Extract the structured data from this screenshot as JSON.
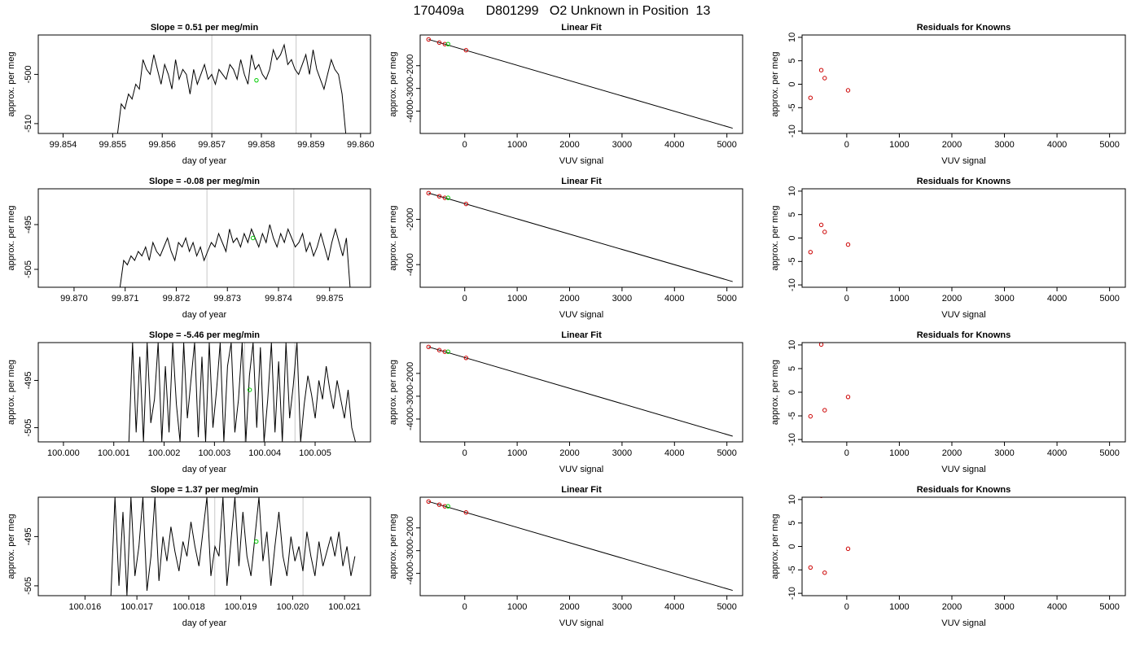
{
  "figure": {
    "title": "170409a      D801299   O2 Unknown in Position  13"
  },
  "rows": [
    {
      "trace": {
        "title": "Slope =  0.51  per meg/min",
        "xlabel": "day of year",
        "ylabel": "approx. per meg",
        "xticks": [
          "99.854",
          "99.855",
          "99.856",
          "99.857",
          "99.858",
          "99.859",
          "99.860"
        ],
        "xtick_values": [
          99.854,
          99.855,
          99.856,
          99.857,
          99.858,
          99.859,
          99.86
        ],
        "xlim": [
          99.8535,
          99.8602
        ],
        "yticks": [
          "-510",
          "-500"
        ],
        "ytick_values": [
          -510,
          -500
        ],
        "ylim": [
          -512,
          -492
        ],
        "vlines": [
          99.857,
          99.8587
        ],
        "green_point": [
          99.8579,
          -501.2
        ],
        "x_start": 99.8551,
        "x_end": 99.8597,
        "series": [
          -512,
          -506,
          -507,
          -504,
          -505,
          -502,
          -503,
          -497,
          -499,
          -500,
          -496,
          -499,
          -502,
          -498,
          -500,
          -503,
          -497,
          -501,
          -499,
          -500,
          -504,
          -499,
          -502,
          -500,
          -498,
          -501,
          -500,
          -502,
          -499,
          -500,
          -501,
          -498,
          -499,
          -501,
          -497,
          -500,
          -502,
          -496,
          -499,
          -498,
          -500,
          -501,
          -499,
          -495,
          -497,
          -496,
          -494,
          -498,
          -497,
          -499,
          -500,
          -498,
          -496,
          -500,
          -495,
          -499,
          -501,
          -503,
          -500,
          -497,
          -499,
          -500,
          -504,
          -512
        ]
      },
      "fit": {
        "title": "Linear Fit",
        "xlabel": "VUV signal",
        "ylabel": "approx. per meg",
        "xticks": [
          "0",
          "1000",
          "2000",
          "3000",
          "4000",
          "5000"
        ],
        "xtick_values": [
          0,
          1000,
          2000,
          3000,
          4000,
          5000
        ],
        "xlim": [
          -850,
          5300
        ],
        "yticks": [
          "-4000",
          "-3000",
          "-2000"
        ],
        "ytick_values": [
          -4000,
          -3000,
          -2000
        ],
        "ylim": [
          -4980,
          -650
        ],
        "line": [
          [
            -690,
            -845
          ],
          [
            5110,
            -4750
          ]
        ],
        "red_points": [
          [
            -690,
            -845
          ],
          [
            -485,
            -985
          ],
          [
            -380,
            -1050
          ],
          [
            25,
            -1320
          ]
        ],
        "green_points": [
          [
            -380,
            -1050
          ]
        ]
      },
      "resid": {
        "title": "Residuals for Knowns",
        "xlabel": "VUV signal",
        "ylabel": "approx. per meg",
        "xticks": [
          "0",
          "1000",
          "2000",
          "3000",
          "4000",
          "5000"
        ],
        "xtick_values": [
          0,
          1000,
          2000,
          3000,
          4000,
          5000
        ],
        "xlim": [
          -850,
          5300
        ],
        "yticks": [
          "-10",
          "-5",
          "0",
          "5",
          "10"
        ],
        "ytick_values": [
          -10,
          -5,
          0,
          5,
          10
        ],
        "ylim": [
          -10.5,
          10.5
        ],
        "red_points": [
          [
            -690,
            -2.9
          ],
          [
            -485,
            3.0
          ],
          [
            -420,
            1.3
          ],
          [
            25,
            -1.3
          ]
        ]
      }
    },
    {
      "trace": {
        "title": "Slope =  -0.08  per meg/min",
        "xlabel": "day of year",
        "ylabel": "approx. per meg",
        "xticks": [
          "99.870",
          "99.871",
          "99.872",
          "99.873",
          "99.874",
          "99.875"
        ],
        "xtick_values": [
          99.87,
          99.871,
          99.872,
          99.873,
          99.874,
          99.875
        ],
        "xlim": [
          99.8693,
          99.8758
        ],
        "yticks": [
          "-505",
          "-495"
        ],
        "ytick_values": [
          -505,
          -495
        ],
        "ylim": [
          -509,
          -487
        ],
        "vlines": [
          99.8726,
          99.8743
        ],
        "green_point": [
          99.8735,
          -498
        ],
        "x_start": 99.8709,
        "x_end": 99.8754,
        "series": [
          -509,
          -503,
          -504,
          -502,
          -503,
          -501,
          -502,
          -500,
          -503,
          -499,
          -501,
          -502,
          -500,
          -498,
          -501,
          -503,
          -499,
          -500,
          -498,
          -501,
          -499,
          -502,
          -500,
          -503,
          -501,
          -499,
          -500,
          -497,
          -499,
          -501,
          -496,
          -499,
          -498,
          -500,
          -497,
          -499,
          -496,
          -498,
          -500,
          -497,
          -499,
          -495,
          -498,
          -500,
          -497,
          -499,
          -496,
          -498,
          -500,
          -499,
          -497,
          -501,
          -499,
          -502,
          -500,
          -497,
          -500,
          -503,
          -499,
          -496,
          -499,
          -502,
          -498,
          -509
        ]
      },
      "fit": {
        "title": "Linear Fit",
        "xlabel": "VUV signal",
        "ylabel": "approx. per meg",
        "xticks": [
          "0",
          "1000",
          "2000",
          "3000",
          "4000",
          "5000"
        ],
        "xtick_values": [
          0,
          1000,
          2000,
          3000,
          4000,
          5000
        ],
        "xlim": [
          -850,
          5300
        ],
        "yticks": [
          "-4000",
          "-2000"
        ],
        "ytick_values": [
          -4000,
          -2000
        ],
        "ylim": [
          -5000,
          -650
        ],
        "line": [
          [
            -690,
            -840
          ],
          [
            5110,
            -4750
          ]
        ],
        "red_points": [
          [
            -690,
            -840
          ],
          [
            -485,
            -980
          ],
          [
            -380,
            -1050
          ],
          [
            25,
            -1320
          ]
        ],
        "green_points": [
          [
            -380,
            -1050
          ]
        ]
      },
      "resid": {
        "title": "Residuals for Knowns",
        "xlabel": "VUV signal",
        "ylabel": "approx. per meg",
        "xticks": [
          "0",
          "1000",
          "2000",
          "3000",
          "4000",
          "5000"
        ],
        "xtick_values": [
          0,
          1000,
          2000,
          3000,
          4000,
          5000
        ],
        "xlim": [
          -850,
          5300
        ],
        "yticks": [
          "-10",
          "-5",
          "0",
          "5",
          "10"
        ],
        "ytick_values": [
          -10,
          -5,
          0,
          5,
          10
        ],
        "ylim": [
          -10.5,
          10.5
        ],
        "red_points": [
          [
            -690,
            -3.0
          ],
          [
            -485,
            2.8
          ],
          [
            -420,
            1.3
          ],
          [
            25,
            -1.4
          ]
        ]
      }
    },
    {
      "trace": {
        "title": "Slope =  -5.46  per meg/min",
        "xlabel": "day of year",
        "ylabel": "approx. per meg",
        "xticks": [
          "100.000",
          "100.001",
          "100.002",
          "100.003",
          "100.004",
          "100.005"
        ],
        "xtick_values": [
          100.0,
          100.001,
          100.002,
          100.003,
          100.004,
          100.005
        ],
        "xlim": [
          99.9995,
          100.0061
        ],
        "yticks": [
          "-505",
          "-495"
        ],
        "ytick_values": [
          -505,
          -495
        ],
        "ylim": [
          -508,
          -487
        ],
        "vlines": [
          100.0036,
          100.0046
        ],
        "green_point": [
          100.0037,
          -497
        ],
        "x_start": 100.0013,
        "x_end": 100.0058,
        "series": [
          -508,
          -487,
          -506,
          -490,
          -508,
          -487,
          -504,
          -499,
          -487,
          -508,
          -492,
          -506,
          -487,
          -500,
          -508,
          -487,
          -503,
          -495,
          -487,
          -507,
          -490,
          -508,
          -487,
          -505,
          -497,
          -487,
          -508,
          -492,
          -487,
          -506,
          -499,
          -487,
          -508,
          -494,
          -487,
          -505,
          -488,
          -508,
          -499,
          -487,
          -506,
          -491,
          -508,
          -487,
          -503,
          -496,
          -487,
          -508,
          -500,
          -494,
          -498,
          -503,
          -495,
          -499,
          -492,
          -497,
          -501,
          -495,
          -499,
          -503,
          -497,
          -505,
          -508
        ]
      },
      "fit": {
        "title": "Linear Fit",
        "xlabel": "VUV signal",
        "ylabel": "approx. per meg",
        "xticks": [
          "0",
          "1000",
          "2000",
          "3000",
          "4000",
          "5000"
        ],
        "xtick_values": [
          0,
          1000,
          2000,
          3000,
          4000,
          5000
        ],
        "xlim": [
          -850,
          5300
        ],
        "yticks": [
          "-4000",
          "-3000",
          "-2000"
        ],
        "ytick_values": [
          -4000,
          -3000,
          -2000
        ],
        "ylim": [
          -5000,
          -650
        ],
        "line": [
          [
            -690,
            -840
          ],
          [
            5110,
            -4750
          ]
        ],
        "red_points": [
          [
            -690,
            -840
          ],
          [
            -485,
            -980
          ],
          [
            -380,
            -1050
          ],
          [
            25,
            -1320
          ]
        ],
        "green_points": [
          [
            -380,
            -1050
          ]
        ]
      },
      "resid": {
        "title": "Residuals for Knowns",
        "xlabel": "VUV signal",
        "ylabel": "approx. per meg",
        "xticks": [
          "0",
          "1000",
          "2000",
          "3000",
          "4000",
          "5000"
        ],
        "xtick_values": [
          0,
          1000,
          2000,
          3000,
          4000,
          5000
        ],
        "xlim": [
          -850,
          5300
        ],
        "yticks": [
          "-10",
          "-5",
          "0",
          "5",
          "10"
        ],
        "ytick_values": [
          -10,
          -5,
          0,
          5,
          10
        ],
        "ylim": [
          -10.5,
          10.5
        ],
        "red_points": [
          [
            -690,
            -5.1
          ],
          [
            -485,
            10.1
          ],
          [
            -420,
            -3.8
          ],
          [
            25,
            -1.0
          ]
        ]
      }
    },
    {
      "trace": {
        "title": "Slope =  1.37  per meg/min",
        "xlabel": "day of year",
        "ylabel": "approx. per meg",
        "xticks": [
          "100.016",
          "100.017",
          "100.018",
          "100.019",
          "100.020",
          "100.021"
        ],
        "xtick_values": [
          100.016,
          100.017,
          100.018,
          100.019,
          100.02,
          100.021
        ],
        "xlim": [
          100.0151,
          100.0215
        ],
        "yticks": [
          "-505",
          "-495"
        ],
        "ytick_values": [
          -505,
          -495
        ],
        "ylim": [
          -507,
          -487
        ],
        "vlines": [
          100.0185,
          100.0202
        ],
        "green_point": [
          100.0193,
          -496
        ],
        "x_start": 100.0165,
        "x_end": 100.0212,
        "series": [
          -507,
          -487,
          -505,
          -490,
          -507,
          -487,
          -503,
          -497,
          -487,
          -506,
          -499,
          -487,
          -504,
          -495,
          -500,
          -493,
          -498,
          -502,
          -496,
          -499,
          -492,
          -497,
          -501,
          -494,
          -487,
          -503,
          -497,
          -499,
          -487,
          -505,
          -496,
          -487,
          -501,
          -490,
          -499,
          -503,
          -495,
          -487,
          -500,
          -494,
          -505,
          -497,
          -490,
          -499,
          -503,
          -495,
          -500,
          -497,
          -502,
          -494,
          -499,
          -503,
          -496,
          -501,
          -498,
          -495,
          -499,
          -494,
          -501,
          -497,
          -503,
          -499
        ]
      },
      "fit": {
        "title": "Linear Fit",
        "xlabel": "VUV signal",
        "ylabel": "approx. per meg",
        "xticks": [
          "0",
          "1000",
          "2000",
          "3000",
          "4000",
          "5000"
        ],
        "xtick_values": [
          0,
          1000,
          2000,
          3000,
          4000,
          5000
        ],
        "xlim": [
          -850,
          5300
        ],
        "yticks": [
          "-4000",
          "-3000",
          "-2000"
        ],
        "ytick_values": [
          -4000,
          -3000,
          -2000
        ],
        "ylim": [
          -4980,
          -650
        ],
        "line": [
          [
            -690,
            -840
          ],
          [
            5110,
            -4750
          ]
        ],
        "red_points": [
          [
            -690,
            -840
          ],
          [
            -485,
            -980
          ],
          [
            -380,
            -1050
          ],
          [
            25,
            -1320
          ]
        ],
        "green_points": [
          [
            -380,
            -1050
          ]
        ]
      },
      "resid": {
        "title": "Residuals for Knowns",
        "xlabel": "VUV signal",
        "ylabel": "approx. per meg",
        "xticks": [
          "0",
          "1000",
          "2000",
          "3000",
          "4000",
          "5000"
        ],
        "xtick_values": [
          0,
          1000,
          2000,
          3000,
          4000,
          5000
        ],
        "xlim": [
          -850,
          5300
        ],
        "yticks": [
          "-10",
          "-5",
          "0",
          "5",
          "10"
        ],
        "ytick_values": [
          -10,
          -5,
          0,
          5,
          10
        ],
        "ylim": [
          -10.5,
          10.5
        ],
        "red_points": [
          [
            -690,
            -4.5
          ],
          [
            -485,
            10.8
          ],
          [
            -420,
            -5.6
          ],
          [
            25,
            -0.5
          ]
        ]
      }
    }
  ]
}
